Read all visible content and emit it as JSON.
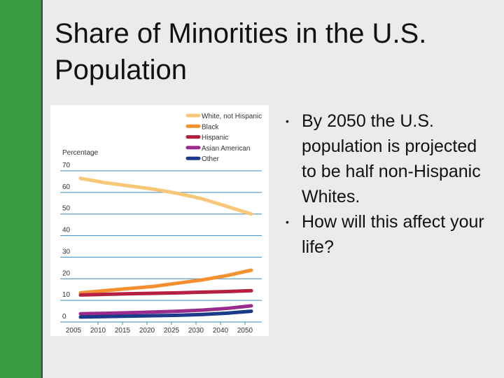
{
  "slide": {
    "title": "Share of Minorities in the U.S. Population",
    "accent_color": "#3a9a40",
    "bullets": [
      "By 2050 the U.S. population is projected to be half non-Hispanic Whites.",
      "How will this  affect your life?"
    ]
  },
  "chart_data": {
    "type": "line",
    "title": "",
    "ylabel": "Percentage",
    "xlabel": "",
    "ylim": [
      0,
      70
    ],
    "yticks": [
      "0",
      "10",
      "20",
      "30",
      "40",
      "50",
      "60",
      "70"
    ],
    "categories": [
      "2005",
      "2010",
      "2015",
      "2020",
      "2025",
      "2030",
      "2040",
      "2050"
    ],
    "grid": true,
    "legend_position": "top-right",
    "series": [
      {
        "name": "White, not Hispanic",
        "color": "#f8c878",
        "values": [
          66.5,
          64.5,
          63,
          61.5,
          59.5,
          57,
          53.5,
          50
        ]
      },
      {
        "name": "Black",
        "color": "#f59030",
        "values": [
          13.5,
          14.5,
          15.5,
          16.5,
          18,
          19.5,
          21.5,
          24
        ]
      },
      {
        "name": "Hispanic",
        "color": "#b52040",
        "values": [
          12.5,
          12.8,
          13.1,
          13.3,
          13.5,
          13.8,
          14.1,
          14.5
        ]
      },
      {
        "name": "Asian American",
        "color": "#9a2a8c",
        "values": [
          3.8,
          4,
          4.3,
          4.6,
          5,
          5.5,
          6.3,
          7.5
        ]
      },
      {
        "name": "Other",
        "color": "#1c3a8a",
        "values": [
          2.3,
          2.5,
          2.7,
          2.9,
          3.1,
          3.5,
          4.1,
          5
        ]
      }
    ]
  }
}
